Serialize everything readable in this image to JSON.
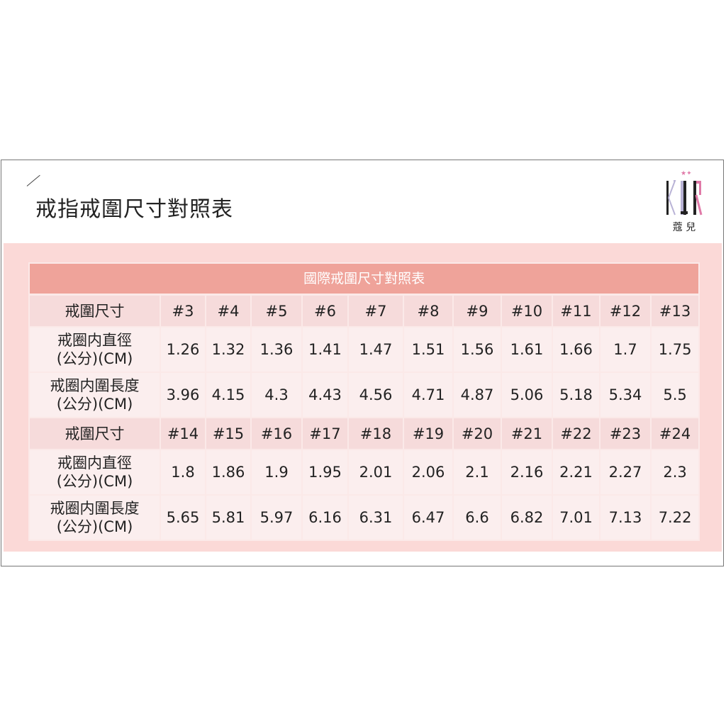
{
  "title": "戒指戒圍尺寸對照表",
  "logo": {
    "letters": "KOR",
    "subtitle": "蔻兒"
  },
  "table": {
    "caption": "國際戒圍尺寸對照表",
    "blocks": [
      {
        "size_label": "戒圍尺寸",
        "sizes": [
          "#3",
          "#4",
          "#5",
          "#6",
          "#7",
          "#8",
          "#9",
          "#10",
          "#11",
          "#12",
          "#13"
        ],
        "diameter_label": [
          "戒圈内直徑",
          "(公分)(CM)"
        ],
        "diameters": [
          "1.26",
          "1.32",
          "1.36",
          "1.41",
          "1.47",
          "1.51",
          "1.56",
          "1.61",
          "1.66",
          "1.7",
          "1.75"
        ],
        "circumference_label": [
          "戒圈内圍長度",
          "(公分)(CM)"
        ],
        "circumferences": [
          "3.96",
          "4.15",
          "4.3",
          "4.43",
          "4.56",
          "4.71",
          "4.87",
          "5.06",
          "5.18",
          "5.34",
          "5.5"
        ]
      },
      {
        "size_label": "戒圍尺寸",
        "sizes": [
          "#14",
          "#15",
          "#16",
          "#17",
          "#18",
          "#19",
          "#20",
          "#21",
          "#22",
          "#23",
          "#24"
        ],
        "diameter_label": [
          "戒圈内直徑",
          "(公分)(CM)"
        ],
        "diameters": [
          "1.8",
          "1.86",
          "1.9",
          "1.95",
          "2.01",
          "2.06",
          "2.1",
          "2.16",
          "2.21",
          "2.27",
          "2.3"
        ],
        "circumference_label": [
          "戒圈内圍長度",
          "(公分)(CM)"
        ],
        "circumferences": [
          "5.65",
          "5.81",
          "5.97",
          "6.16",
          "6.31",
          "6.47",
          "6.6",
          "6.82",
          "7.01",
          "7.13",
          "7.22"
        ]
      }
    ]
  },
  "colors": {
    "caption_bg": "#efa39a",
    "size_row_bg": "#f6dbdb",
    "data_row_bg": "#fbeeee",
    "panel_bg": "#fbd9d7"
  }
}
